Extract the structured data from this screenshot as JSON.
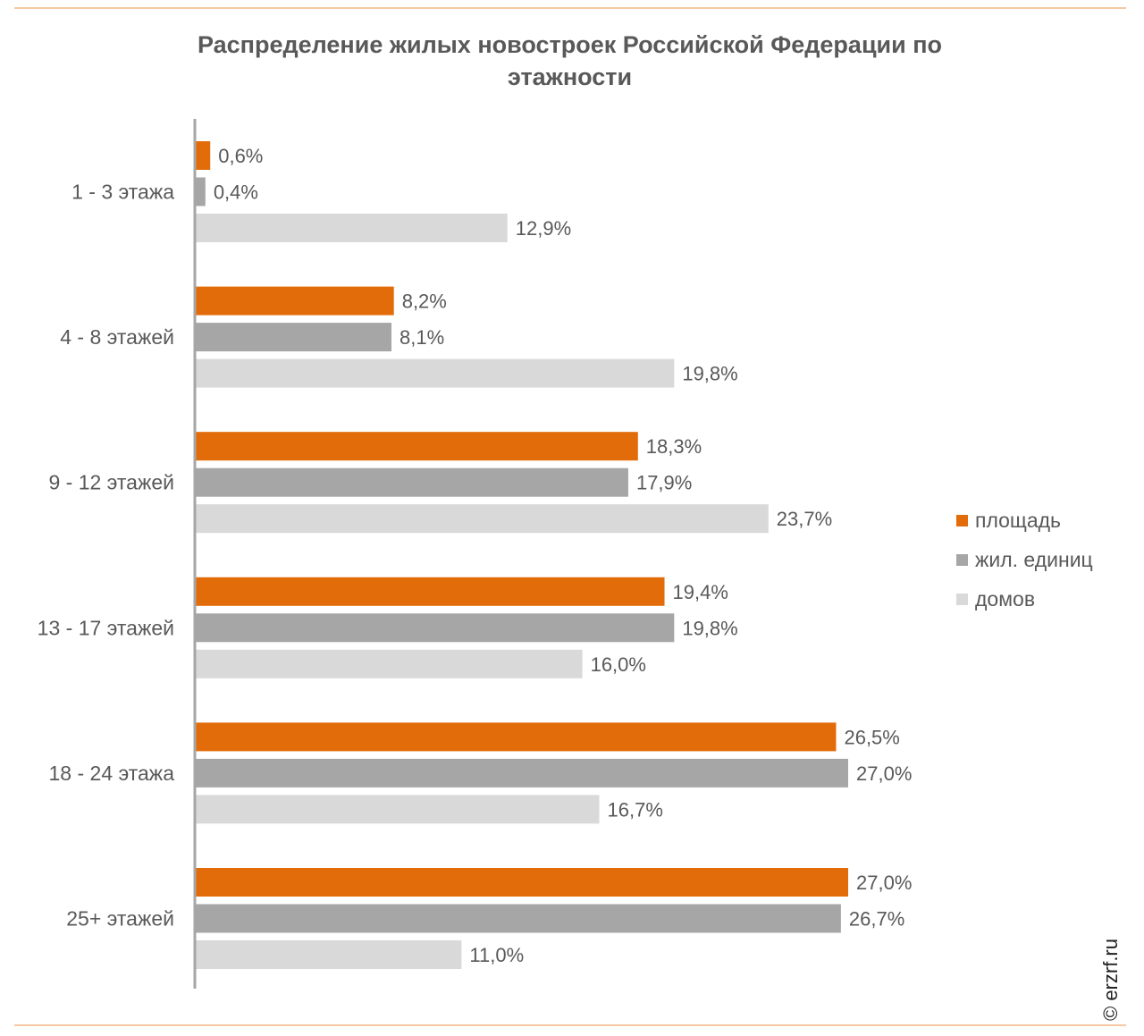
{
  "title": "Распределение жилых новостроек Российской Федерации по этажности",
  "watermark": "© erzrf.ru",
  "colors": {
    "area": "#e36c0a",
    "units": "#a6a6a6",
    "houses": "#d9d9d9",
    "axis": "#a6a6a6"
  },
  "chart_data": {
    "type": "bar",
    "orientation": "horizontal",
    "title": "Распределение жилых новостроек Российской Федерации по этажности",
    "categories": [
      "1 - 3 этажа",
      "4 - 8 этажей",
      "9 - 12 этажей",
      "13 - 17 этажей",
      "18 - 24 этажа",
      "25+ этажей"
    ],
    "series": [
      {
        "name": "площадь",
        "values": [
          0.6,
          8.2,
          18.3,
          19.4,
          26.5,
          27.0
        ],
        "labels": [
          "0,6%",
          "8,2%",
          "18,3%",
          "19,4%",
          "26,5%",
          "27,0%"
        ]
      },
      {
        "name": "жил. единиц",
        "values": [
          0.4,
          8.1,
          17.9,
          19.8,
          27.0,
          26.7
        ],
        "labels": [
          "0,4%",
          "8,1%",
          "17,9%",
          "19,8%",
          "27,0%",
          "26,7%"
        ]
      },
      {
        "name": "домов",
        "values": [
          12.9,
          19.8,
          23.7,
          16.0,
          16.7,
          11.0
        ],
        "labels": [
          "12,9%",
          "19,8%",
          "23,7%",
          "16,0%",
          "16,7%",
          "11,0%"
        ]
      }
    ],
    "xlim": [
      0,
      27.0
    ],
    "grid": false,
    "legend": "right"
  }
}
